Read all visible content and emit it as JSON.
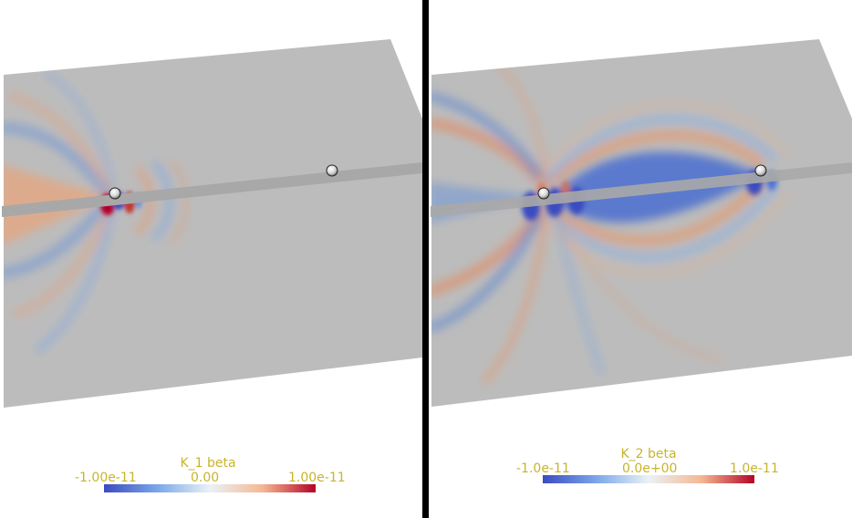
{
  "colors": {
    "background": "#ffffff",
    "slab": "#bcbcbc",
    "divider": "#000000",
    "label_text": "#c8b42a",
    "colormap": [
      "#3b4cc0",
      "#7aa6e8",
      "#eaf2f6",
      "#f4b892",
      "#b40426"
    ]
  },
  "left_panel": {
    "colorbar": {
      "title": "K_1 beta",
      "min_label": "-1.00e-11",
      "mid_label": "0.00",
      "max_label": "1.00e-11",
      "range": [
        -1e-11,
        1e-11
      ]
    }
  },
  "right_panel": {
    "colorbar": {
      "title": "K_2 beta",
      "min_label": "-1.0e-11",
      "mid_label": "0.0e+00",
      "max_label": "1.0e-11",
      "range": [
        -1e-11,
        1e-11
      ]
    }
  }
}
